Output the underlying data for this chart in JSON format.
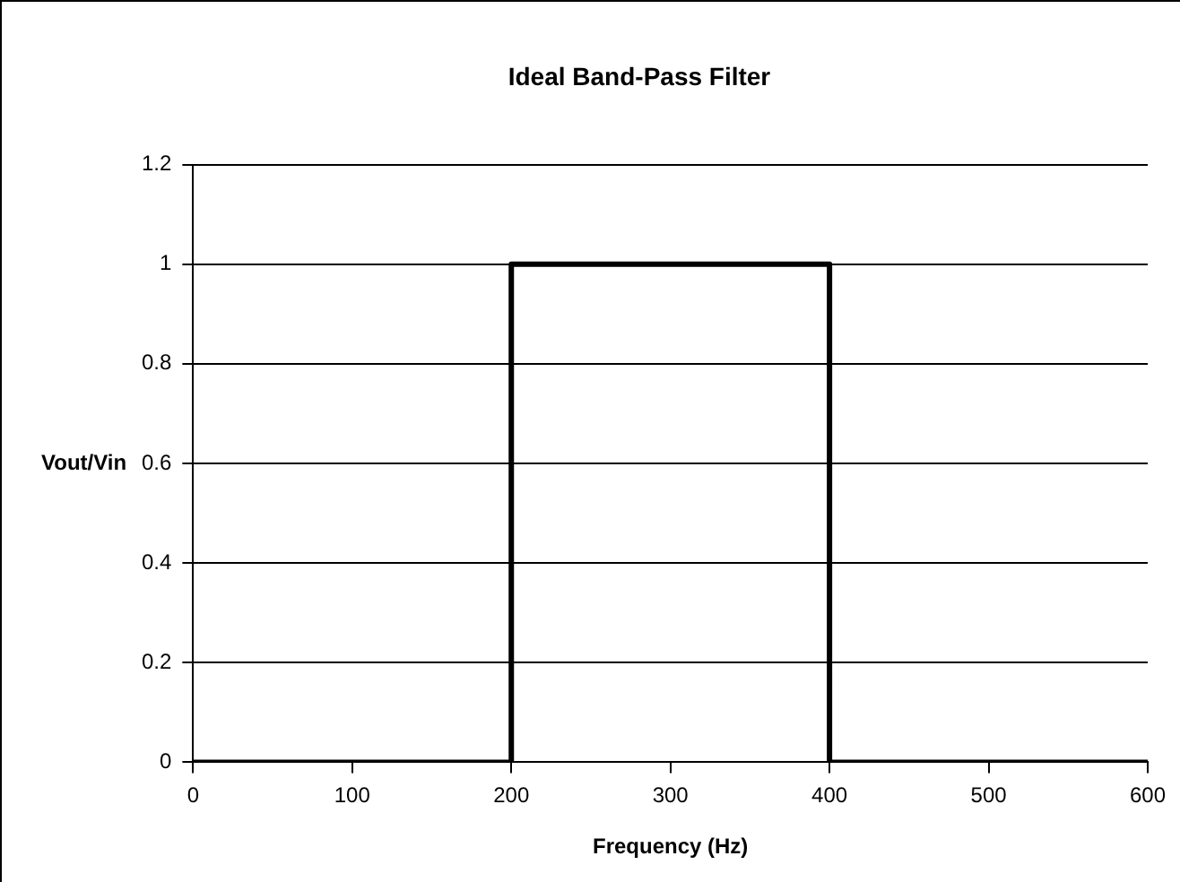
{
  "chart_data": {
    "type": "line",
    "title": "Ideal Band-Pass Filter",
    "xlabel": "Frequency (Hz)",
    "ylabel": "Vout/Vin",
    "x": [
      0,
      200,
      200,
      400,
      400,
      600
    ],
    "series": [
      {
        "color": "#000000",
        "values": [
          0,
          0,
          1,
          1,
          0,
          0
        ]
      }
    ],
    "xlim": [
      0,
      600
    ],
    "xticks": [
      0,
      100,
      200,
      300,
      400,
      500,
      600
    ],
    "ylim": [
      0,
      1.2
    ],
    "yticks": [
      0,
      0.2,
      0.4,
      0.6,
      0.8,
      1,
      1.2
    ],
    "grid": "y",
    "legend": false,
    "marker": "none",
    "line_style": "solid"
  }
}
